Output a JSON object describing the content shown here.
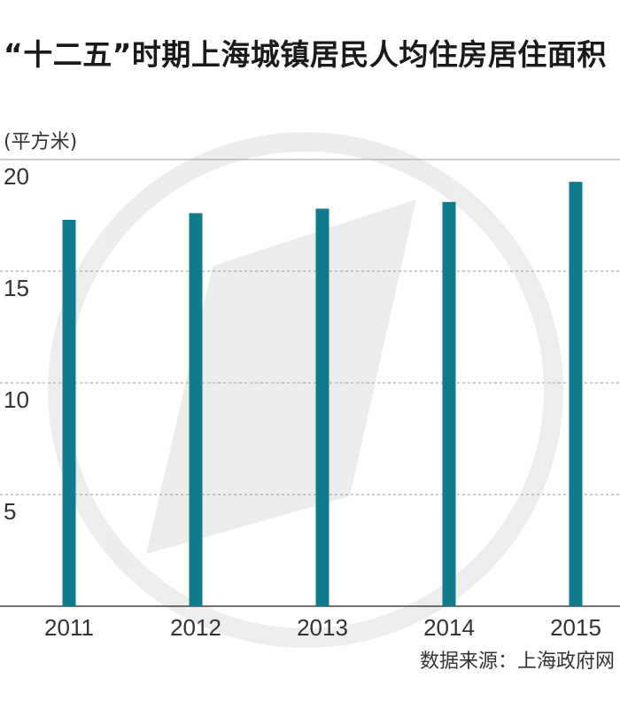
{
  "chart_data": {
    "type": "bar",
    "title": "“十二五”时期上海城镇居民人均住房居住面积",
    "unit_label": "(平方米)",
    "categories": [
      "2011",
      "2012",
      "2013",
      "2014",
      "2015"
    ],
    "values": [
      17.3,
      17.6,
      17.8,
      18.1,
      19.0
    ],
    "ylim": [
      0,
      20
    ],
    "yticks": [
      5,
      10,
      15,
      20
    ],
    "grid": "horizontal-dashed",
    "bar_color": "#117a8b",
    "source": "数据来源：上海政府网"
  }
}
